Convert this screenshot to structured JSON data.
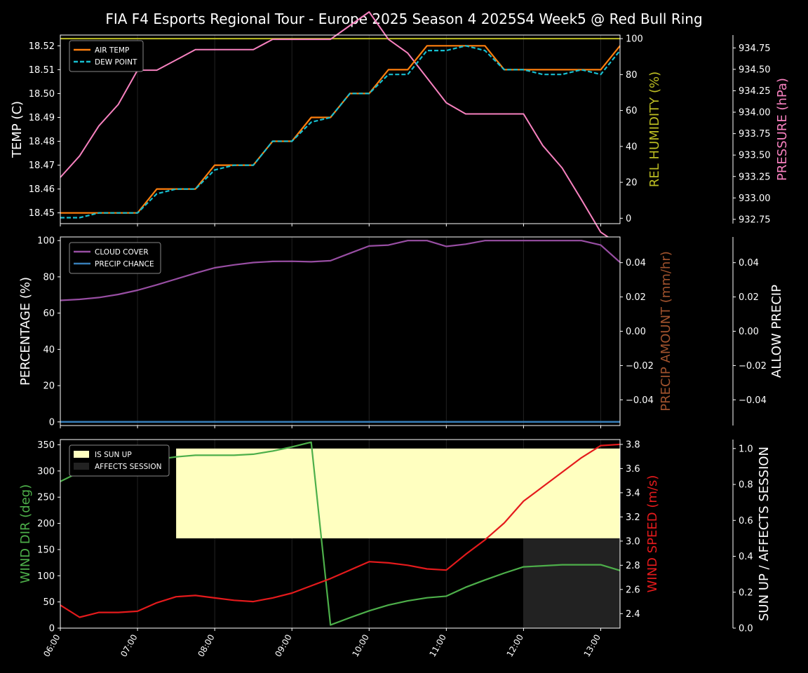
{
  "title": "FIA F4 Esports Regional Tour - Europe 2025 Season 4 2025S4 Week5 @ Red Bull Ring",
  "x_ticks": [
    "06:00",
    "07:00",
    "08:00",
    "09:00",
    "10:00",
    "11:00",
    "12:00",
    "13:00"
  ],
  "colors": {
    "air_temp": "#ff7f0e",
    "dew_point": "#17becf",
    "humidity": "#bcbd22",
    "pressure": "#f781bf",
    "cloud": "#984ea3",
    "precip_chance": "#377eb8",
    "precip_amount_label": "#a0522d",
    "wind_dir": "#4daf4a",
    "wind_speed": "#e41a1c",
    "sun_up": "#ffffc0",
    "affects": "#222222"
  },
  "chart_data": [
    {
      "type": "line",
      "panel": "top",
      "x": [
        "06:00",
        "06:15",
        "06:30",
        "06:45",
        "07:00",
        "07:15",
        "07:30",
        "07:45",
        "08:00",
        "08:15",
        "08:30",
        "08:45",
        "09:00",
        "09:15",
        "09:30",
        "09:45",
        "10:00",
        "10:15",
        "10:30",
        "10:45",
        "11:00",
        "11:15",
        "11:30",
        "11:45",
        "12:00",
        "12:15",
        "12:30",
        "12:45",
        "13:00",
        "13:15"
      ],
      "series": [
        {
          "name": "AIR TEMP",
          "axis": "left",
          "values": [
            18.45,
            18.45,
            18.45,
            18.45,
            18.45,
            18.46,
            18.46,
            18.46,
            18.47,
            18.47,
            18.47,
            18.48,
            18.48,
            18.49,
            18.49,
            18.5,
            18.5,
            18.51,
            18.51,
            18.52,
            18.52,
            18.52,
            18.52,
            18.51,
            18.51,
            18.51,
            18.51,
            18.51,
            18.51,
            18.52
          ]
        },
        {
          "name": "DEW POINT",
          "axis": "left",
          "values": [
            18.448,
            18.448,
            18.45,
            18.45,
            18.45,
            18.458,
            18.46,
            18.46,
            18.468,
            18.47,
            18.47,
            18.48,
            18.48,
            18.488,
            18.49,
            18.5,
            18.5,
            18.508,
            18.508,
            18.518,
            18.518,
            18.52,
            18.518,
            18.51,
            18.51,
            18.508,
            18.508,
            18.51,
            18.508,
            18.518
          ]
        },
        {
          "name": "",
          "axis": "humidity",
          "values": [
            100,
            100,
            100,
            100,
            100,
            100,
            100,
            100,
            100,
            100,
            100,
            100,
            100,
            100,
            100,
            100,
            100,
            100,
            100,
            100,
            100,
            100,
            100,
            100,
            100,
            100,
            100,
            100,
            100,
            100
          ]
        },
        {
          "name": "",
          "axis": "pressure",
          "values": [
            933.24,
            933.49,
            933.84,
            934.09,
            934.49,
            934.49,
            934.61,
            934.73,
            934.73,
            934.73,
            934.73,
            934.85,
            934.85,
            934.85,
            934.85,
            935.01,
            935.17,
            934.85,
            934.69,
            934.4,
            934.11,
            933.98,
            933.98,
            933.98,
            933.98,
            933.61,
            933.35,
            932.98,
            932.6,
            932.45
          ]
        }
      ],
      "ylabel": "TEMP (C)",
      "ylim": [
        18.4455,
        18.5245
      ],
      "yticks": [
        18.45,
        18.46,
        18.47,
        18.48,
        18.49,
        18.5,
        18.51,
        18.52
      ],
      "humidity_label": "REL HUMIDITY (%)",
      "humidity_ylim": [
        -3,
        102
      ],
      "humidity_ticks": [
        0,
        20,
        40,
        60,
        80,
        100
      ],
      "pressure_label": "PRESSURE (hPa)",
      "pressure_ylim": [
        932.7,
        934.9
      ],
      "pressure_ticks": [
        "932.75",
        "933.00",
        "933.25",
        "933.50",
        "933.75",
        "934.00",
        "934.25",
        "934.50",
        "934.75"
      ],
      "legend": [
        "AIR TEMP",
        "DEW POINT"
      ],
      "legend_position": "top-left"
    },
    {
      "type": "line",
      "panel": "middle",
      "x": [
        "06:00",
        "06:15",
        "06:30",
        "06:45",
        "07:00",
        "07:15",
        "07:30",
        "07:45",
        "08:00",
        "08:15",
        "08:30",
        "08:45",
        "09:00",
        "09:15",
        "09:30",
        "09:45",
        "10:00",
        "10:15",
        "10:30",
        "10:45",
        "11:00",
        "11:15",
        "11:30",
        "11:45",
        "12:00",
        "12:15",
        "12:30",
        "12:45",
        "13:00",
        "13:15"
      ],
      "series": [
        {
          "name": "CLOUD COVER",
          "values": [
            67,
            67.6,
            68.6,
            70.3,
            72.6,
            75.6,
            78.8,
            82,
            85,
            86.6,
            87.9,
            88.5,
            88.6,
            88.3,
            88.9,
            93,
            97,
            97.5,
            100,
            100,
            96.8,
            98,
            100,
            100,
            100,
            100,
            100,
            100,
            97.5,
            88
          ]
        },
        {
          "name": "PRECIP CHANCE",
          "values": [
            0,
            0,
            0,
            0,
            0,
            0,
            0,
            0,
            0,
            0,
            0,
            0,
            0,
            0,
            0,
            0,
            0,
            0,
            0,
            0,
            0,
            0,
            0,
            0,
            0,
            0,
            0,
            0,
            0,
            0
          ]
        }
      ],
      "ylabel": "PERCENTAGE (%)",
      "ylim": [
        -2,
        102
      ],
      "yticks": [
        0,
        20,
        40,
        60,
        80,
        100
      ],
      "precip_label": "PRECIP AMOUNT (mm/hr)",
      "precip_ticks": [
        "−0.04",
        "−0.02",
        "0.00",
        "0.02",
        "0.04"
      ],
      "allow_label": "ALLOW PRECIP",
      "allow_ticks": [
        "−0.04",
        "−0.02",
        "0.00",
        "0.02",
        "0.04"
      ],
      "legend": [
        "CLOUD COVER",
        "PRECIP CHANCE"
      ],
      "legend_position": "top-left"
    },
    {
      "type": "line",
      "panel": "bottom",
      "x": [
        "06:00",
        "06:15",
        "06:30",
        "06:45",
        "07:00",
        "07:15",
        "07:30",
        "07:45",
        "08:00",
        "08:15",
        "08:30",
        "08:45",
        "09:00",
        "09:15",
        "09:30",
        "09:45",
        "10:00",
        "10:15",
        "10:30",
        "10:45",
        "11:00",
        "11:15",
        "11:30",
        "11:45",
        "12:00",
        "12:15",
        "12:30",
        "12:45",
        "13:00",
        "13:15"
      ],
      "series": [
        {
          "name": "",
          "axis": "left",
          "values": [
            280,
            298,
            314,
            318,
            318,
            322,
            327,
            330,
            330,
            330,
            332,
            338,
            346,
            355,
            6,
            20,
            33,
            44,
            52,
            58,
            61,
            78,
            92,
            105,
            117,
            119,
            121,
            121,
            121,
            110
          ]
        },
        {
          "name": "",
          "axis": "speed",
          "values": [
            2.47,
            2.37,
            2.41,
            2.41,
            2.42,
            2.49,
            2.54,
            2.55,
            2.53,
            2.51,
            2.5,
            2.53,
            2.57,
            2.63,
            2.69,
            2.76,
            2.83,
            2.82,
            2.8,
            2.77,
            2.76,
            2.89,
            3.01,
            3.15,
            3.33,
            3.45,
            3.57,
            3.69,
            3.79,
            3.8
          ]
        }
      ],
      "sun_up": {
        "start": "07:30",
        "end": "13:15",
        "level": 1
      },
      "affects_session": {
        "start": "12:00",
        "end": "13:15",
        "level": 0.5
      },
      "ylabel": "WIND DIR (deg)",
      "ylim": [
        0,
        360
      ],
      "yticks": [
        0,
        50,
        100,
        150,
        200,
        250,
        300,
        350
      ],
      "speed_label": "WIND SPEED (m/s)",
      "speed_ylim": [
        2.28,
        3.84
      ],
      "speed_ticks": [
        "2.4",
        "2.6",
        "2.8",
        "3.0",
        "3.2",
        "3.4",
        "3.6",
        "3.8"
      ],
      "sun_label": "SUN UP / AFFECTS SESSION",
      "sun_ylim": [
        0,
        1.05
      ],
      "sun_ticks": [
        "0.0",
        "0.2",
        "0.4",
        "0.6",
        "0.8",
        "1.0"
      ],
      "legend": [
        "IS SUN UP",
        "AFFECTS SESSION"
      ],
      "legend_position": "top-left"
    }
  ]
}
